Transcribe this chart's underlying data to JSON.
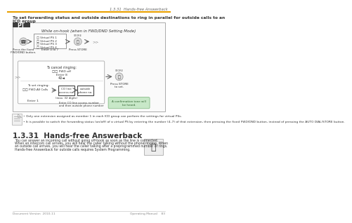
{
  "page_header_right": "1.3.31  Hands-free Answerback",
  "header_line_color": "#E8A000",
  "bg_color": "#FFFFFF",
  "title_line1": "To set forwarding status and outside destinations to ring in parallel for outside calls to an",
  "title_line2": "ICD group",
  "pt_label": "PT",
  "pt_bg": "#3C3C3C",
  "pt_text_color": "#FFFFFF",
  "diagram_border": "#AAAAAA",
  "while_text": "While on-hook (when in FWD/DND Setting Mode)",
  "virtual_ps_list": [
    "Virtual PS 1",
    "Virtual PS 2",
    "Virtual PS 3",
    "Virtual PS 4"
  ],
  "cancel_label": "To cancel ringing:",
  "fwd_off_label": "FWD off",
  "enter_8_label": "Enter 8",
  "num_8": "40◄",
  "set_ringing_label": "To set ringing:",
  "fwd_all_calls_label": "FWD-All Calls",
  "enter_1_label": "Enter 1",
  "co_line_label": "CO line\naccess no.",
  "outside_label": "outside\nphone no.",
  "max_label": "(max. 32 digits)",
  "enter_co_label": "Enter CO line access number\nand then outside phone number",
  "press_store_label": "Press STORE\nto set.",
  "confirmation_label": "A confirmation tone will\nbe heard.",
  "confirmation_bg": "#C8E8C8",
  "note_bullets": [
    "Only one extension assigned as member 1 in each ICD group can perform the settings for virtual PSs.",
    "It is possible to switch the forwarding status (on/off) of a virtual PS by entering the number (4–7) of that extension, then pressing the fixed FWD/DND button, instead of pressing the AUTO DIAL/STORE button."
  ],
  "section_heading": "1.3.31  Hands-free Answerback",
  "body_text_lines": [
    "You can answer an incoming call without going off-hook as soon as the line is connected.",
    "When an intercom call arrives, you will hear the caller talking without the phone ringing. When",
    "an outside call arrives, you will hear the caller talking after a preprogrammed number of rings.",
    "Hands-free Answerback for outside calls requires System Programming."
  ],
  "footer_left": "Document Version  2010-11",
  "footer_right": "Operating Manual    83",
  "footer_line_color": "#BBBBBB",
  "arrow_color": "#666666",
  "box_border_color": "#888888",
  "text_color": "#333333",
  "label_text_color": "#555555"
}
